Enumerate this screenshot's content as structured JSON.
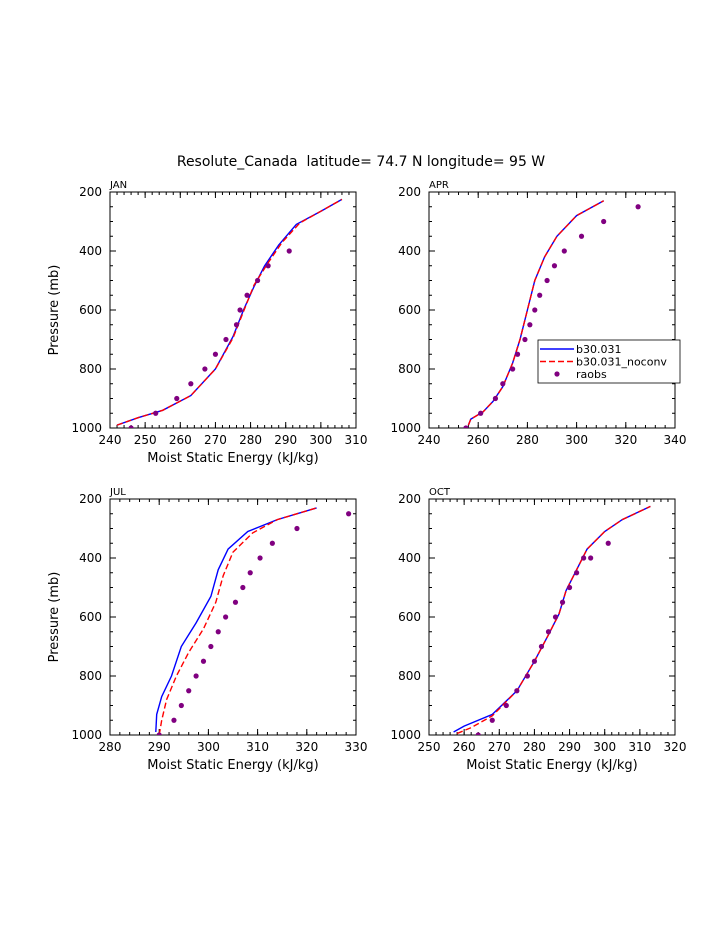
{
  "figure_title": "Resolute_Canada  latitude= 74.7 N longitude= 95 W",
  "colors": {
    "model": "#0000ff",
    "noconv": "#ff0000",
    "raobs": "#800080"
  },
  "chart_data": [
    {
      "type": "line",
      "panel": "JAN",
      "xlabel": "Moist Static Energy (kJ/kg)",
      "ylabel": "Pressure (mb)",
      "xlim": [
        240,
        310
      ],
      "ylim": [
        1000,
        200
      ],
      "xticks": [
        240,
        250,
        260,
        270,
        280,
        290,
        300,
        310
      ],
      "yticks": [
        200,
        400,
        600,
        800,
        1000
      ],
      "series": [
        {
          "name": "b30.031",
          "style": "solid",
          "points": [
            [
              242,
              990
            ],
            [
              248,
              965
            ],
            [
              255,
              940
            ],
            [
              263,
              890
            ],
            [
              270,
              800
            ],
            [
              275,
              690
            ],
            [
              278,
              600
            ],
            [
              281,
              520
            ],
            [
              284,
              450
            ],
            [
              288,
              380
            ],
            [
              293,
              310
            ],
            [
              300,
              265
            ],
            [
              306,
              225
            ]
          ]
        },
        {
          "name": "b30.031_noconv",
          "style": "dashed",
          "points": [
            [
              242,
              990
            ],
            [
              248,
              965
            ],
            [
              255,
              940
            ],
            [
              263,
              890
            ],
            [
              270,
              800
            ],
            [
              275,
              695
            ],
            [
              278,
              605
            ],
            [
              281,
              515
            ],
            [
              285,
              440
            ],
            [
              289,
              370
            ],
            [
              294,
              305
            ],
            [
              300,
              265
            ],
            [
              306,
              225
            ]
          ]
        },
        {
          "name": "raobs",
          "style": "dots",
          "points": [
            [
              246,
              1000
            ],
            [
              253,
              950
            ],
            [
              259,
              900
            ],
            [
              263,
              850
            ],
            [
              267,
              800
            ],
            [
              270,
              750
            ],
            [
              273,
              700
            ],
            [
              276,
              650
            ],
            [
              277,
              600
            ],
            [
              279,
              550
            ],
            [
              282,
              500
            ],
            [
              285,
              450
            ],
            [
              291,
              400
            ]
          ]
        }
      ]
    },
    {
      "type": "line",
      "panel": "APR",
      "xlabel": "",
      "ylabel": "",
      "xlim": [
        240,
        340
      ],
      "ylim": [
        1000,
        200
      ],
      "xticks": [
        240,
        260,
        280,
        300,
        320,
        340
      ],
      "yticks": [
        200,
        400,
        600,
        800,
        1000
      ],
      "legend": {
        "position": "right",
        "entries": [
          "b30.031",
          "b30.031_noconv",
          "raobs"
        ]
      },
      "series": [
        {
          "name": "b30.031",
          "style": "solid",
          "points": [
            [
              256,
              990
            ],
            [
              257,
              970
            ],
            [
              262,
              945
            ],
            [
              266,
              910
            ],
            [
              270,
              860
            ],
            [
              274,
              780
            ],
            [
              277,
              700
            ],
            [
              280,
              600
            ],
            [
              283,
              500
            ],
            [
              287,
              420
            ],
            [
              292,
              350
            ],
            [
              300,
              280
            ],
            [
              311,
              230
            ]
          ]
        },
        {
          "name": "b30.031_noconv",
          "style": "dashed",
          "points": [
            [
              256,
              990
            ],
            [
              257,
              970
            ],
            [
              262,
              945
            ],
            [
              266,
              910
            ],
            [
              270,
              860
            ],
            [
              274,
              780
            ],
            [
              277,
              700
            ],
            [
              280,
              600
            ],
            [
              283,
              500
            ],
            [
              287,
              420
            ],
            [
              292,
              350
            ],
            [
              300,
              280
            ],
            [
              311,
              230
            ]
          ]
        },
        {
          "name": "raobs",
          "style": "dots",
          "points": [
            [
              255,
              1000
            ],
            [
              261,
              950
            ],
            [
              267,
              900
            ],
            [
              270,
              850
            ],
            [
              274,
              800
            ],
            [
              276,
              750
            ],
            [
              279,
              700
            ],
            [
              281,
              650
            ],
            [
              283,
              600
            ],
            [
              285,
              550
            ],
            [
              288,
              500
            ],
            [
              291,
              450
            ],
            [
              295,
              400
            ],
            [
              302,
              350
            ],
            [
              311,
              300
            ],
            [
              325,
              250
            ]
          ]
        }
      ]
    },
    {
      "type": "line",
      "panel": "JUL",
      "xlabel": "Moist Static Energy (kJ/kg)",
      "ylabel": "Pressure (mb)",
      "xlim": [
        280,
        330
      ],
      "ylim": [
        1000,
        200
      ],
      "xticks": [
        280,
        290,
        300,
        310,
        320,
        330
      ],
      "yticks": [
        200,
        400,
        600,
        800,
        1000
      ],
      "series": [
        {
          "name": "b30.031",
          "style": "solid",
          "points": [
            [
              289.3,
              990
            ],
            [
              289.5,
              930
            ],
            [
              290.5,
              870
            ],
            [
              292.5,
              800
            ],
            [
              294.5,
              700
            ],
            [
              297.5,
              620
            ],
            [
              300.5,
              530
            ],
            [
              302,
              440
            ],
            [
              304,
              370
            ],
            [
              308,
              310
            ],
            [
              314,
              270
            ],
            [
              322,
              230
            ]
          ]
        },
        {
          "name": "b30.031_noconv",
          "style": "dashed",
          "points": [
            [
              290,
              1000
            ],
            [
              290.5,
              950
            ],
            [
              291.5,
              880
            ],
            [
              293.5,
              800
            ],
            [
              296,
              720
            ],
            [
              299,
              640
            ],
            [
              301.5,
              550
            ],
            [
              303,
              460
            ],
            [
              305,
              380
            ],
            [
              309,
              315
            ],
            [
              314,
              270
            ],
            [
              322,
              230
            ]
          ]
        },
        {
          "name": "raobs",
          "style": "dots",
          "points": [
            [
              290,
              1000
            ],
            [
              293,
              950
            ],
            [
              294.5,
              900
            ],
            [
              296,
              850
            ],
            [
              297.5,
              800
            ],
            [
              299,
              750
            ],
            [
              300.5,
              700
            ],
            [
              302,
              650
            ],
            [
              303.5,
              600
            ],
            [
              305.5,
              550
            ],
            [
              307,
              500
            ],
            [
              308.5,
              450
            ],
            [
              310.5,
              400
            ],
            [
              313,
              350
            ],
            [
              318,
              300
            ],
            [
              328.5,
              250
            ]
          ]
        }
      ]
    },
    {
      "type": "line",
      "panel": "OCT",
      "xlabel": "Moist Static Energy (kJ/kg)",
      "ylabel": "",
      "xlim": [
        250,
        320
      ],
      "ylim": [
        1000,
        200
      ],
      "xticks": [
        250,
        260,
        270,
        280,
        290,
        300,
        310,
        320
      ],
      "yticks": [
        200,
        400,
        600,
        800,
        1000
      ],
      "series": [
        {
          "name": "b30.031",
          "style": "solid",
          "points": [
            [
              257,
              990
            ],
            [
              260,
              970
            ],
            [
              268,
              930
            ],
            [
              275,
              850
            ],
            [
              280,
              750
            ],
            [
              284,
              660
            ],
            [
              287,
              590
            ],
            [
              289,
              510
            ],
            [
              292,
              440
            ],
            [
              295,
              370
            ],
            [
              300,
              310
            ],
            [
              305,
              270
            ],
            [
              313,
              225
            ]
          ]
        },
        {
          "name": "b30.031_noconv",
          "style": "dashed",
          "points": [
            [
              258,
              995
            ],
            [
              262,
              975
            ],
            [
              268,
              935
            ],
            [
              275,
              850
            ],
            [
              280,
              750
            ],
            [
              284,
              660
            ],
            [
              287,
              590
            ],
            [
              289,
              510
            ],
            [
              292,
              440
            ],
            [
              295,
              370
            ],
            [
              300,
              310
            ],
            [
              305,
              270
            ],
            [
              313,
              225
            ]
          ]
        },
        {
          "name": "raobs",
          "style": "dots",
          "points": [
            [
              264,
              1000
            ],
            [
              268,
              950
            ],
            [
              272,
              900
            ],
            [
              275,
              850
            ],
            [
              278,
              800
            ],
            [
              280,
              750
            ],
            [
              282,
              700
            ],
            [
              284,
              650
            ],
            [
              286,
              600
            ],
            [
              288,
              550
            ],
            [
              290,
              500
            ],
            [
              292,
              450
            ],
            [
              294,
              400
            ],
            [
              296,
              400
            ],
            [
              301,
              350
            ]
          ]
        }
      ]
    }
  ]
}
